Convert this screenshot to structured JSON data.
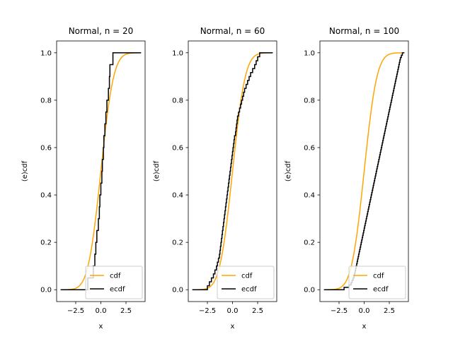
{
  "chart_data": [
    {
      "type": "line",
      "title": "Normal, n = 20",
      "xlabel": "x",
      "ylabel": "(e)cdf",
      "xlim": [
        -4.4,
        4.4
      ],
      "ylim": [
        -0.05,
        1.05
      ],
      "xticks": [
        -2.5,
        0,
        2.5
      ],
      "xtick_labels": [
        "−2.5",
        "0.0",
        "2.5"
      ],
      "yticks": [
        0,
        0.2,
        0.4,
        0.6,
        0.8,
        1.0
      ],
      "ytick_labels": [
        "0.0",
        "0.2",
        "0.4",
        "0.6",
        "0.8",
        "1.0"
      ],
      "grid": false,
      "legend_position": "lower-right",
      "series": [
        {
          "name": "cdf",
          "kind": "normal-cdf",
          "color": "#FFA500",
          "x_range": [
            -4,
            4
          ]
        },
        {
          "name": "ecdf",
          "kind": "step",
          "color": "#000000",
          "x_range": [
            -4,
            4
          ],
          "points": [
            -1.3,
            -0.75,
            -0.6,
            -0.5,
            -0.4,
            -0.25,
            -0.15,
            -0.1,
            0.0,
            0.1,
            0.15,
            0.25,
            0.3,
            0.4,
            0.5,
            0.6,
            0.75,
            0.85,
            0.9,
            1.2
          ]
        }
      ]
    },
    {
      "type": "line",
      "title": "Normal, n = 60",
      "xlabel": "x",
      "ylabel": "(e)cdf",
      "xlim": [
        -4.4,
        4.4
      ],
      "ylim": [
        -0.05,
        1.05
      ],
      "xticks": [
        -2.5,
        0,
        2.5
      ],
      "xtick_labels": [
        "−2.5",
        "0.0",
        "2.5"
      ],
      "yticks": [
        0,
        0.2,
        0.4,
        0.6,
        0.8,
        1.0
      ],
      "ytick_labels": [
        "0.0",
        "0.2",
        "0.4",
        "0.6",
        "0.8",
        "1.0"
      ],
      "grid": false,
      "legend_position": "lower-right",
      "series": [
        {
          "name": "cdf",
          "kind": "normal-cdf",
          "color": "#FFA500",
          "x_range": [
            -4,
            4
          ]
        },
        {
          "name": "ecdf",
          "kind": "step",
          "color": "#000000",
          "x_range": [
            -4,
            4
          ],
          "points": [
            -2.5,
            -2.3,
            -2.1,
            -1.9,
            -1.75,
            -1.6,
            -1.5,
            -1.4,
            -1.3,
            -1.25,
            -1.2,
            -1.15,
            -1.1,
            -1.05,
            -1.0,
            -0.95,
            -0.9,
            -0.85,
            -0.8,
            -0.75,
            -0.7,
            -0.65,
            -0.6,
            -0.55,
            -0.5,
            -0.45,
            -0.4,
            -0.35,
            -0.3,
            -0.25,
            -0.2,
            -0.15,
            -0.1,
            -0.05,
            0.0,
            0.05,
            0.1,
            0.15,
            0.2,
            0.3,
            0.35,
            0.4,
            0.45,
            0.5,
            0.6,
            0.7,
            0.8,
            0.9,
            1.0,
            1.1,
            1.2,
            1.35,
            1.5,
            1.65,
            1.8,
            2.0,
            2.2,
            2.35,
            2.5,
            2.7
          ]
        }
      ]
    },
    {
      "type": "line",
      "title": "Normal, n = 100",
      "xlabel": "x",
      "ylabel": "(e)cdf",
      "xlim": [
        -4.4,
        4.4
      ],
      "ylim": [
        -0.05,
        1.05
      ],
      "xticks": [
        -2.5,
        0,
        2.5
      ],
      "xtick_labels": [
        "−2.5",
        "0.0",
        "2.5"
      ],
      "yticks": [
        0,
        0.2,
        0.4,
        0.6,
        0.8,
        1.0
      ],
      "ytick_labels": [
        "0.0",
        "0.2",
        "0.4",
        "0.6",
        "0.8",
        "1.0"
      ],
      "grid": false,
      "legend_position": "lower-right",
      "series": [
        {
          "name": "cdf",
          "kind": "normal-cdf",
          "color": "#FFA500",
          "x_range": [
            -4,
            4
          ]
        },
        {
          "name": "ecdf",
          "kind": "step",
          "color": "#000000",
          "x_range": [
            -4,
            4
          ],
          "points": [
            -2.0,
            -1.5,
            -1.3,
            -1.2,
            -1.1,
            -1.0,
            -0.95,
            -0.9,
            -0.85,
            -0.8,
            -0.75,
            -0.7,
            -0.65,
            -0.6,
            -0.55,
            -0.5,
            -0.45,
            -0.4,
            -0.35,
            -0.3,
            -0.25,
            -0.2,
            -0.15,
            -0.1,
            -0.05,
            0.0,
            0.05,
            0.1,
            0.15,
            0.2,
            0.25,
            0.3,
            0.35,
            0.4,
            0.45,
            0.5,
            0.55,
            0.6,
            0.65,
            0.7,
            0.75,
            0.8,
            0.85,
            0.9,
            0.95,
            1.0,
            1.05,
            1.1,
            1.15,
            1.2,
            1.25,
            1.3,
            1.35,
            1.4,
            1.45,
            1.5,
            1.55,
            1.6,
            1.65,
            1.7,
            1.75,
            1.8,
            1.85,
            1.9,
            1.95,
            2.0,
            2.05,
            2.1,
            2.15,
            2.2,
            2.25,
            2.3,
            2.35,
            2.4,
            2.45,
            2.5,
            2.55,
            2.6,
            2.65,
            2.7,
            2.75,
            2.8,
            2.85,
            2.9,
            2.95,
            3.0,
            3.05,
            3.1,
            3.15,
            3.2,
            3.25,
            3.3,
            3.35,
            3.4,
            3.45,
            3.5,
            3.55,
            3.6,
            3.7,
            3.8
          ]
        }
      ]
    }
  ]
}
